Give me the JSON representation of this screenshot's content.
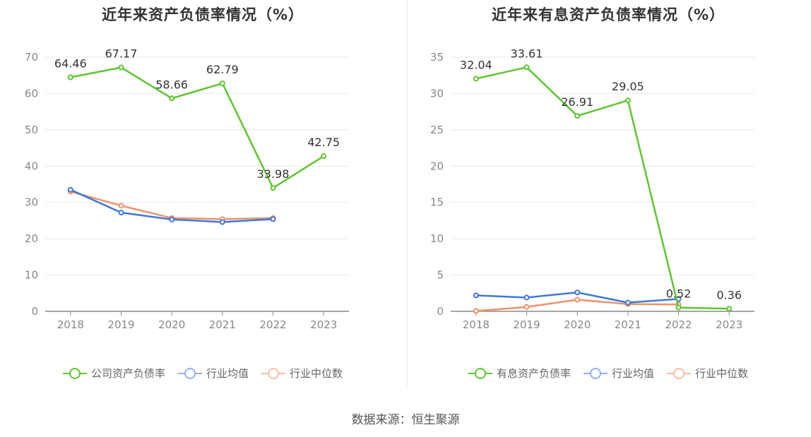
{
  "source_label": "数据来源：恒生聚源",
  "colors": {
    "company": "#5cc62e",
    "industry_avg": "#3f77dc",
    "industry_median": "#f0916a"
  },
  "chart_data": [
    {
      "type": "line",
      "title": "近年来资产负债率情况（%）",
      "categories": [
        "2018",
        "2019",
        "2020",
        "2021",
        "2022",
        "2023"
      ],
      "ylim": [
        0,
        70
      ],
      "yticks": [
        0,
        10,
        20,
        30,
        40,
        50,
        60,
        70
      ],
      "grid": true,
      "legend_position": "bottom",
      "series": [
        {
          "name": "公司资产负债率",
          "values": [
            64.46,
            67.17,
            58.66,
            62.79,
            33.98,
            42.75
          ],
          "labels": [
            "64.46",
            "67.17",
            "58.66",
            "62.79",
            "33.98",
            "42.75"
          ]
        },
        {
          "name": "行业均值",
          "values": [
            33.5,
            27.2,
            25.3,
            24.6,
            25.4,
            null
          ]
        },
        {
          "name": "行业中位数",
          "values": [
            33.0,
            29.1,
            25.7,
            25.4,
            25.7,
            null
          ]
        }
      ]
    },
    {
      "type": "line",
      "title": "近年来有息资产负债率情况（%）",
      "categories": [
        "2018",
        "2019",
        "2020",
        "2021",
        "2022",
        "2023"
      ],
      "ylim": [
        0,
        35
      ],
      "yticks": [
        0,
        5,
        10,
        15,
        20,
        25,
        30,
        35
      ],
      "grid": true,
      "legend_position": "bottom",
      "series": [
        {
          "name": "有息资产负债率",
          "values": [
            32.04,
            33.61,
            26.91,
            29.05,
            0.52,
            0.36
          ],
          "labels": [
            "32.04",
            "33.61",
            "26.91",
            "29.05",
            "0.52",
            "0.36"
          ]
        },
        {
          "name": "行业均值",
          "values": [
            2.2,
            1.9,
            2.6,
            1.2,
            1.7,
            null
          ]
        },
        {
          "name": "行业中位数",
          "values": [
            0.05,
            0.6,
            1.6,
            1.0,
            0.95,
            null
          ]
        }
      ]
    }
  ]
}
